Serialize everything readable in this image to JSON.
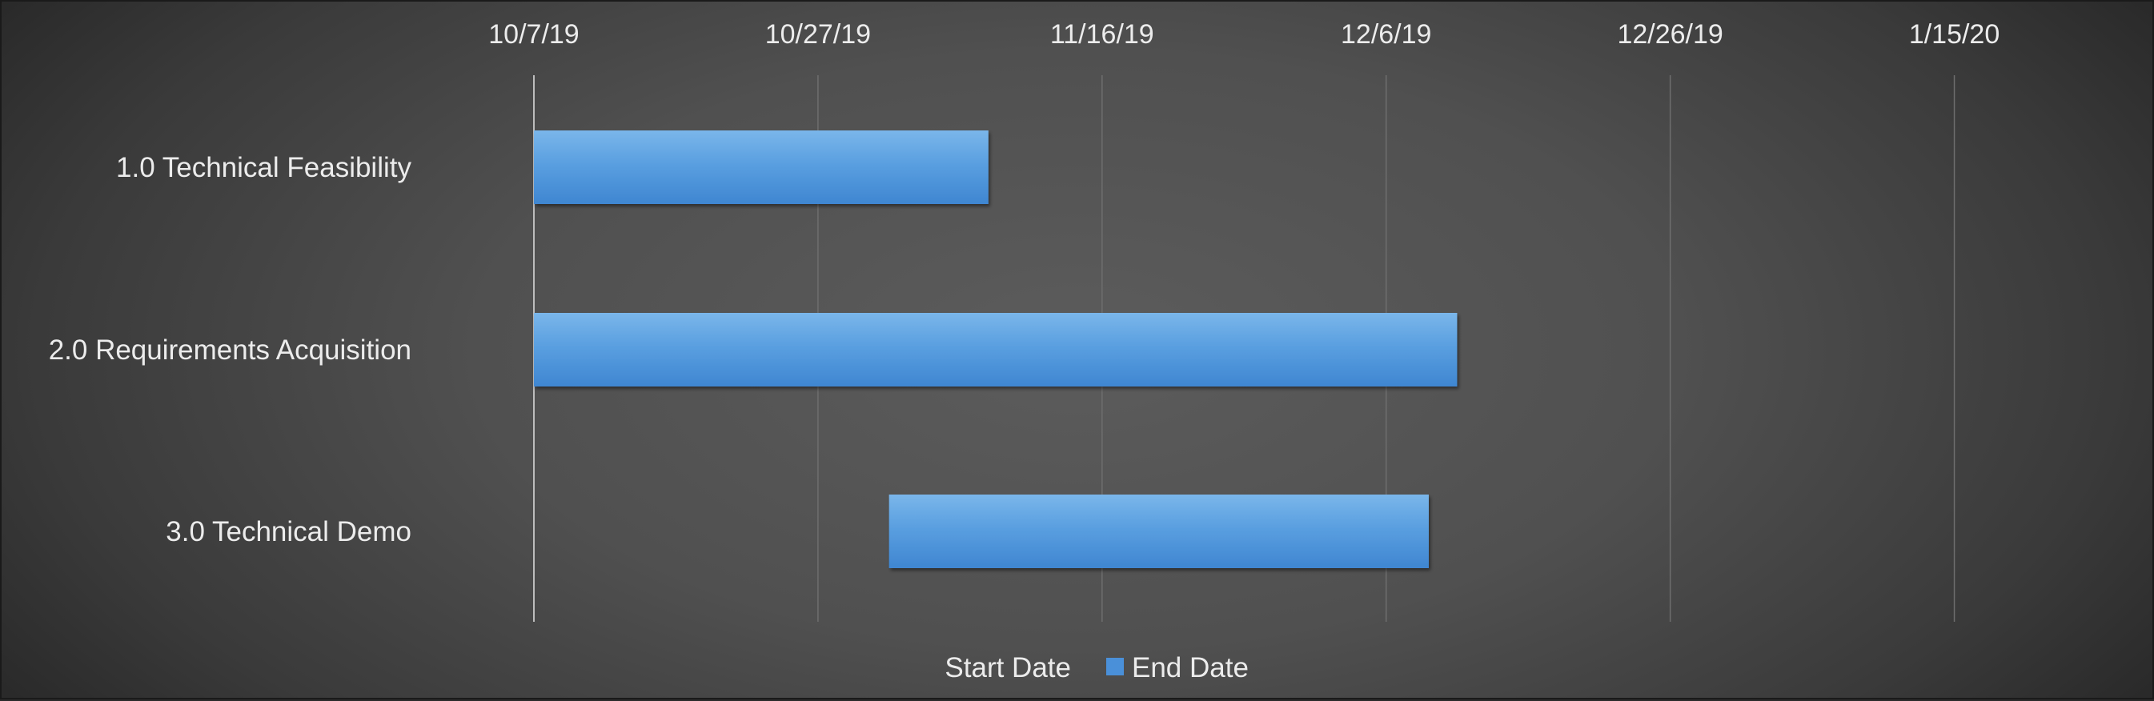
{
  "chart_data": {
    "type": "bar",
    "orientation": "horizontal",
    "stacked": true,
    "categories": [
      "1.0 Technical Feasibility",
      "2.0 Requirements Acquisition",
      "3.0  Technical Demo"
    ],
    "x_axis": {
      "type": "date",
      "position": "top",
      "range": [
        "2019-10-07",
        "2020-01-25"
      ],
      "ticks": [
        "2019-10-07",
        "2019-10-27",
        "2019-11-16",
        "2019-12-06",
        "2019-12-26",
        "2020-01-15"
      ],
      "tick_labels": [
        "10/7/19",
        "10/27/19",
        "11/16/19",
        "12/6/19",
        "12/26/19",
        "1/15/20"
      ]
    },
    "series": [
      {
        "name": "Start Date",
        "visible": false,
        "values": [
          "2019-10-07",
          "2019-10-07",
          "2019-11-01"
        ]
      },
      {
        "name": "End Date",
        "visible": true,
        "color": "#4a90d9",
        "bars": [
          {
            "start": "2019-10-07",
            "end": "2019-11-08"
          },
          {
            "start": "2019-10-07",
            "end": "2019-12-11"
          },
          {
            "start": "2019-11-01",
            "end": "2019-12-09"
          }
        ]
      }
    ],
    "grid": true,
    "legend": {
      "position": "bottom",
      "entries": [
        {
          "label": "Start Date",
          "swatch": false
        },
        {
          "label": "End Date",
          "swatch": true,
          "color": "#4a90d9"
        }
      ]
    }
  }
}
